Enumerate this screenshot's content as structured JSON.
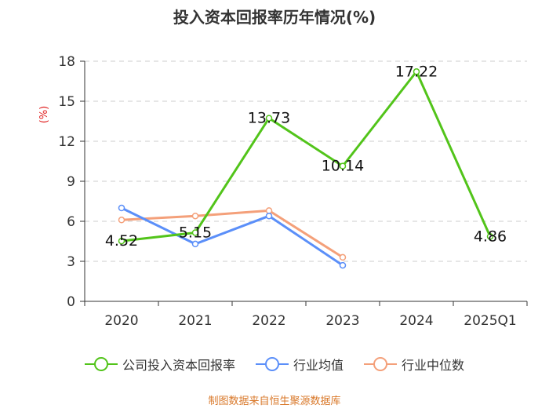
{
  "chart_data": {
    "type": "line",
    "title": "投入资本回报率历年情况(%)",
    "ylabel": "(%)",
    "xlabel": "",
    "categories": [
      "2020",
      "2021",
      "2022",
      "2023",
      "2024",
      "2025Q1"
    ],
    "ylim": [
      0,
      18
    ],
    "yticks": [
      0,
      3,
      6,
      9,
      12,
      15,
      18
    ],
    "grid": true,
    "legend_position": "bottom",
    "series": [
      {
        "name": "公司投入资本回报率",
        "color": "#52c41a",
        "values": [
          4.52,
          5.15,
          13.73,
          10.14,
          17.22,
          4.86
        ],
        "labels": [
          "4.52",
          "5.15",
          "13.73",
          "10.14",
          "17.22",
          "4.86"
        ],
        "show_labels": true
      },
      {
        "name": "行业均值",
        "color": "#5b8ff9",
        "values": [
          7.0,
          4.3,
          6.4,
          2.7,
          null,
          null
        ],
        "show_labels": false
      },
      {
        "name": "行业中位数",
        "color": "#f4a07a",
        "values": [
          6.1,
          6.4,
          6.8,
          3.3,
          null,
          null
        ],
        "show_labels": false
      }
    ]
  },
  "source_text": "制图数据来自恒生聚源数据库"
}
